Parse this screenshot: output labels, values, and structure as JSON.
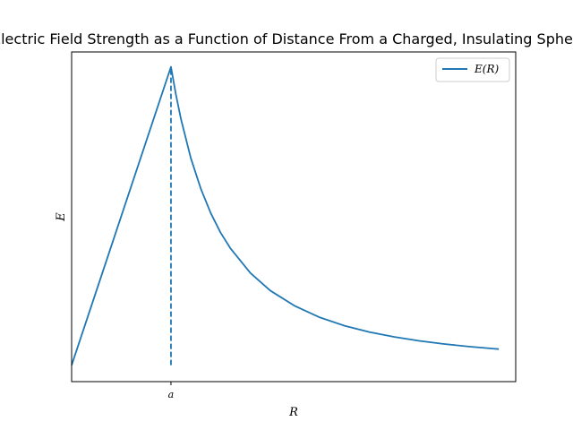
{
  "chart_data": {
    "type": "line",
    "title": "Electric Field Strength as a Function of Distance From a Charged, Insulating Sphere.",
    "xlabel": "R",
    "ylabel": "E",
    "x_ticks": [
      {
        "value": 1,
        "label": "a"
      }
    ],
    "y_ticks": [],
    "xlim": [
      0.0,
      4.47
    ],
    "ylim": [
      -0.055,
      1.05
    ],
    "grid": false,
    "legend": {
      "position": "upper-right",
      "entries": [
        "E(R)"
      ]
    },
    "colors": {
      "series": "#1f77b4",
      "axes": "#000000",
      "background": "#ffffff"
    },
    "series": [
      {
        "name": "E(R)",
        "style": "solid",
        "x": [
          0,
          1,
          1.05,
          1.1,
          1.2,
          1.3,
          1.4,
          1.5,
          1.6,
          1.8,
          2.0,
          2.25,
          2.5,
          2.75,
          3.0,
          3.25,
          3.5,
          3.75,
          4.0,
          4.25,
          4.3
        ],
        "y": [
          0,
          1,
          0.907,
          0.826,
          0.694,
          0.592,
          0.51,
          0.444,
          0.391,
          0.309,
          0.25,
          0.198,
          0.16,
          0.132,
          0.111,
          0.0947,
          0.0816,
          0.0711,
          0.0625,
          0.0554,
          0.0541
        ]
      },
      {
        "name": "",
        "style": "dashed",
        "x": [
          1,
          1
        ],
        "y": [
          0,
          1
        ]
      }
    ]
  }
}
